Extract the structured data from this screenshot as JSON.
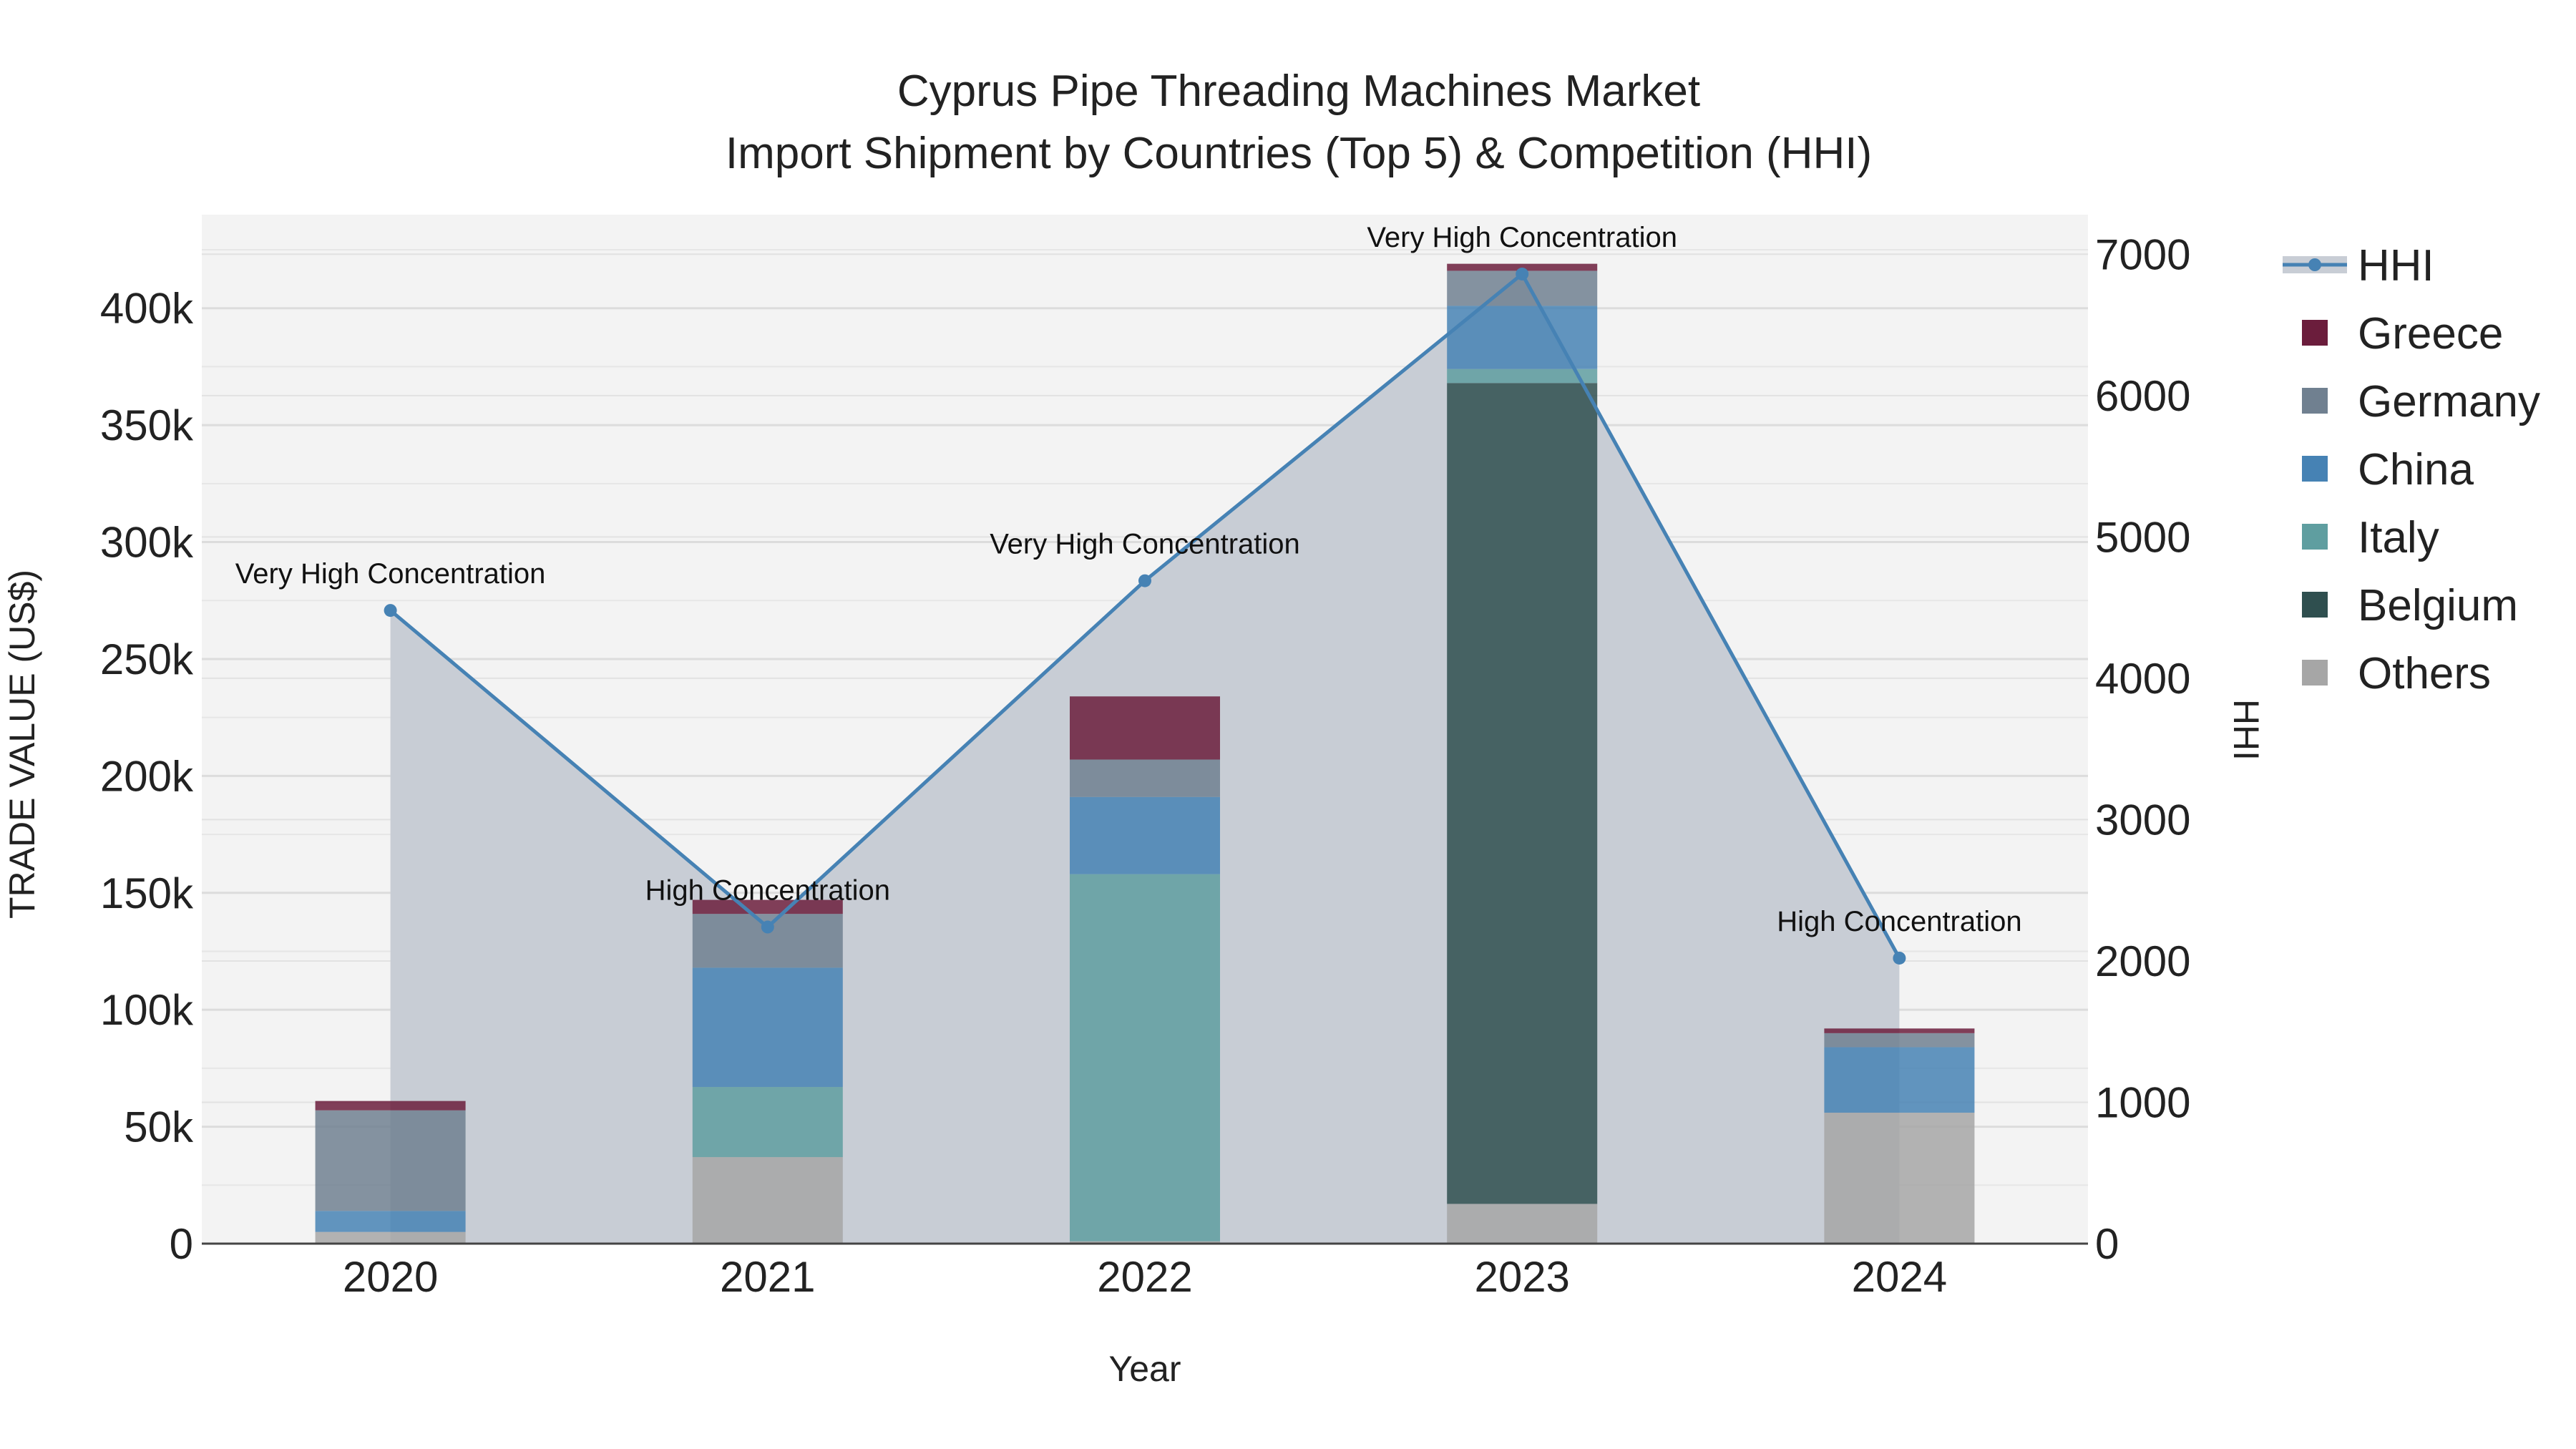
{
  "chart_data": {
    "type": "bar",
    "title": "Cyprus Pipe Threading Machines Market",
    "subtitle": "Import Shipment by Countries (Top 5) & Competition (HHI)",
    "xlabel": "Year",
    "ylabel": "TRADE VALUE (US$)",
    "y2label": "HHI",
    "categories": [
      "2020",
      "2021",
      "2022",
      "2023",
      "2024"
    ],
    "ylim": [
      0,
      440000
    ],
    "y2lim": [
      0,
      7280
    ],
    "yticks": [
      0,
      50000,
      100000,
      150000,
      200000,
      250000,
      300000,
      350000,
      400000
    ],
    "ytick_labels": [
      "0",
      "50k",
      "100k",
      "150k",
      "200k",
      "250k",
      "300k",
      "350k",
      "400k"
    ],
    "y2ticks": [
      0,
      1000,
      2000,
      3000,
      4000,
      5000,
      6000,
      7000
    ],
    "y2tick_labels": [
      "0",
      "1000",
      "2000",
      "3000",
      "4000",
      "5000",
      "6000",
      "7000"
    ],
    "series": [
      {
        "name": "Others",
        "color": "#a6a6a6",
        "values": [
          5000,
          37000,
          1000,
          17000,
          56000
        ]
      },
      {
        "name": "Belgium",
        "color": "#2f4f4f",
        "values": [
          0,
          0,
          0,
          351000,
          0
        ]
      },
      {
        "name": "Italy",
        "color": "#5f9ea0",
        "values": [
          0,
          30000,
          157000,
          6000,
          0
        ]
      },
      {
        "name": "China",
        "color": "#4682b4",
        "values": [
          9000,
          51000,
          33000,
          27000,
          28000
        ]
      },
      {
        "name": "Germany",
        "color": "#708090",
        "values": [
          43000,
          23000,
          16000,
          15000,
          6000
        ]
      },
      {
        "name": "Greece",
        "color": "#6b1d3c",
        "values": [
          4000,
          6000,
          27000,
          3000,
          2000
        ]
      }
    ],
    "legend_order": [
      "HHI",
      "Greece",
      "Germany",
      "China",
      "Italy",
      "Belgium",
      "Others"
    ],
    "hhi": {
      "name": "HHI",
      "color": "#4682b4",
      "values": [
        4480,
        2240,
        4690,
        6860,
        2020
      ],
      "annotations": [
        "Very High Concentration",
        "High Concentration",
        "Very High Concentration",
        "Very High Concentration",
        "High Concentration"
      ]
    }
  }
}
